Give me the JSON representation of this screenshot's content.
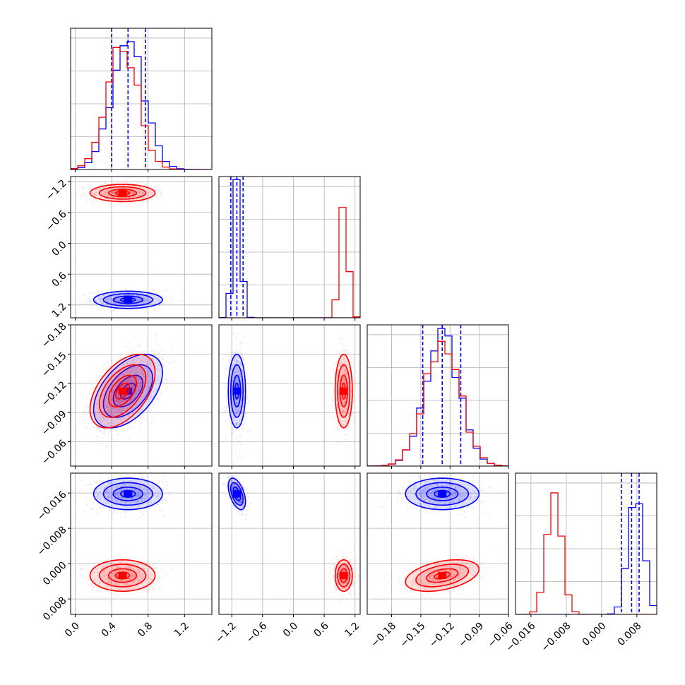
{
  "chart_data": {
    "type": "corner",
    "title": "",
    "colors": {
      "series_a": "#0000ff",
      "series_b": "#ff0000",
      "grid": "#b0b0b0",
      "axis": "#000000"
    },
    "params": [
      {
        "range": [
          -0.05,
          1.5
        ],
        "ticks": [
          0.0,
          0.4,
          0.8,
          1.2
        ],
        "tick_labels": [
          "0.0",
          "0.4",
          "0.8",
          "1.2"
        ]
      },
      {
        "range": [
          -1.45,
          1.3
        ],
        "ticks": [
          -1.2,
          -0.6,
          0.0,
          0.6,
          1.2
        ],
        "tick_labels": [
          "−1.2",
          "−0.6",
          "0.0",
          "0.6",
          "1.2"
        ]
      },
      {
        "range": [
          -0.205,
          -0.06
        ],
        "ticks": [
          -0.18,
          -0.15,
          -0.12,
          -0.09,
          -0.06
        ],
        "tick_labels": [
          "−0.18",
          "−0.15",
          "−0.12",
          "−0.09",
          "−0.06"
        ]
      },
      {
        "range": [
          -0.0195,
          0.0125
        ],
        "ticks": [
          -0.016,
          -0.008,
          0.0,
          0.008
        ],
        "tick_labels": [
          "−0.016",
          "−0.008",
          "0.000",
          "0.008"
        ]
      }
    ],
    "y_tick_labels": [
      [],
      [
        "1.2",
        "0.6",
        "0.0",
        "−0.6",
        "−1.2"
      ],
      [
        "−0.06",
        "−0.09",
        "−0.12",
        "−0.15",
        "−0.18"
      ],
      [
        "0.008",
        "0.000",
        "−0.008",
        "−0.016"
      ]
    ],
    "series": [
      {
        "name": "",
        "color": "#0000ff",
        "mean": [
          0.58,
          -1.1,
          -0.128,
          0.0078
        ],
        "sd": [
          0.18,
          0.08,
          0.018,
          0.0017
        ],
        "quantiles": [
          [
            0.4,
            0.58,
            0.77
          ],
          [
            -1.22,
            -1.1,
            -0.98
          ],
          [
            -0.148,
            -0.128,
            -0.109
          ],
          [
            0.0045,
            0.0068,
            0.0085
          ]
        ],
        "corr": {
          "0-2": 0.5,
          "1-3": -0.5,
          "0-1": 0,
          "0-3": 0,
          "1-2": 0,
          "2-3": 0
        }
      },
      {
        "name": "",
        "color": "#ff0000",
        "mean": [
          0.52,
          0.98,
          -0.128,
          -0.0107
        ],
        "sd": [
          0.17,
          0.08,
          0.018,
          0.0017
        ],
        "quantiles": [],
        "corr": {
          "0-2": 0.5,
          "2-3": 0.4,
          "0-1": 0,
          "0-3": 0,
          "1-2": 0,
          "1-3": 0
        }
      }
    ]
  }
}
